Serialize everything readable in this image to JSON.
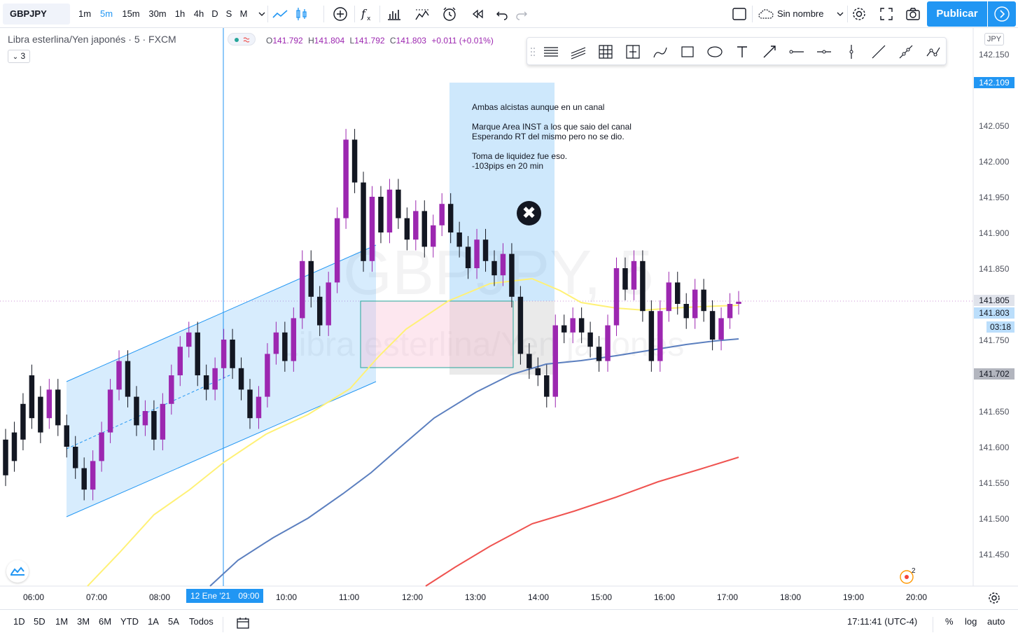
{
  "toolbar": {
    "symbol": "GBPJPY",
    "intervals": [
      "1m",
      "5m",
      "15m",
      "30m",
      "1h",
      "4h",
      "D",
      "S",
      "M"
    ],
    "active_interval": "5m",
    "layout_name": "Sin nombre",
    "publish_label": "Publicar"
  },
  "legend": {
    "title": "Libra esterlina/Yen japonés · 5 · FXCM",
    "indicator_count": "3",
    "o_label": "O",
    "o_value": "141.792",
    "h_label": "H",
    "h_value": "141.804",
    "l_label": "L",
    "l_value": "141.792",
    "c_label": "C",
    "c_value": "141.803",
    "change": "+0.011 (+0.01%)"
  },
  "annotation": {
    "text": "Ambas alcistas aunque en un canal\n\nMarque Area INST a los que saio del canal\nEsperando RT del mismo pero no se dio.\n\nToma de liquidez fue eso.\n-103pips en 20 min"
  },
  "watermark": {
    "symbol": "GBPJPY, 5",
    "name": "Libra esterlina/Yen japonés"
  },
  "price_axis": {
    "currency": "JPY",
    "ticks": [
      "142.150",
      "142.050",
      "142.000",
      "141.950",
      "141.900",
      "141.850",
      "141.750",
      "141.650",
      "141.600",
      "141.550",
      "141.500",
      "141.450"
    ],
    "tags": {
      "high_mark": "142.109",
      "last": "141.805",
      "current": "141.803",
      "countdown": "03:18",
      "low_mark": "141.702"
    }
  },
  "time_axis": {
    "ticks": [
      "06:00",
      "07:00",
      "08:00",
      "10:00",
      "11:00",
      "12:00",
      "13:00",
      "14:00",
      "15:00",
      "16:00",
      "17:00",
      "18:00",
      "19:00",
      "20:00"
    ],
    "crosshair_date": "12 Ene '21",
    "crosshair_time": "09:00"
  },
  "bottombar": {
    "ranges": [
      "1D",
      "5D",
      "1M",
      "3M",
      "6M",
      "YTD",
      "1A",
      "5A",
      "Todos"
    ],
    "clock": "17:11:41 (UTC-4)",
    "percent_label": "%",
    "log_label": "log",
    "auto_label": "auto"
  },
  "alert_count": "2",
  "colors": {
    "bull": "#9c27b0",
    "bear": "#131722",
    "ma_fast": "#fff176",
    "ma_mid": "#5b7fbf",
    "ma_slow": "#ef5350",
    "channel": "#2196f3",
    "accent": "#2196f3"
  }
}
